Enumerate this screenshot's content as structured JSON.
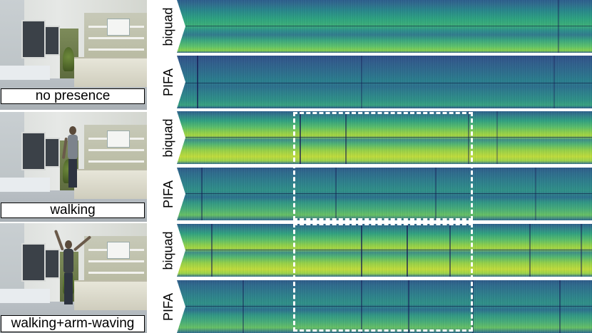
{
  "rows": [
    {
      "label": "no presence",
      "top_band": "biquad",
      "bottom_band": "PIFA"
    },
    {
      "label": "walking",
      "top_band": "biquad",
      "bottom_band": "PIFA"
    },
    {
      "label": "walking+arm-waving",
      "top_band": "biquad",
      "bottom_band": "PIFA"
    }
  ],
  "colors": {
    "spectrogram_low": "#2a4f86",
    "spectrogram_mid": "#2ba27f",
    "spectrogram_high": "#c0dc3a",
    "highlight_box": "#ffffff"
  }
}
